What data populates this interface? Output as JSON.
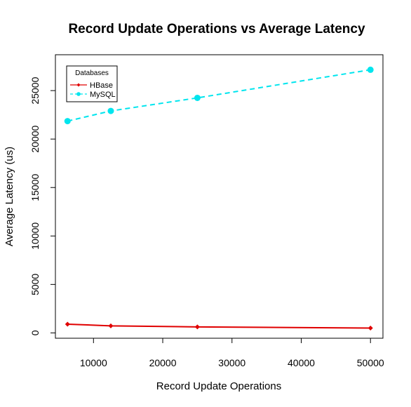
{
  "chart_data": {
    "type": "line",
    "title": "Record Update Operations vs Average Latency",
    "xlabel": "Record Update Operations",
    "ylabel": "Average Latency (us)",
    "x": [
      6250,
      12500,
      25000,
      50000
    ],
    "xlim": [
      4500,
      51800
    ],
    "ylim": [
      -550,
      28700
    ],
    "xticks": [
      10000,
      20000,
      30000,
      40000,
      50000
    ],
    "yticks": [
      0,
      5000,
      10000,
      15000,
      20000,
      25000
    ],
    "legend": {
      "title": "Databases",
      "position": "top-left"
    },
    "grid": false,
    "series": [
      {
        "name": "HBase",
        "color": "#e00000",
        "line_style": "solid",
        "marker": "diamond",
        "values": [
          900,
          730,
          620,
          500
        ]
      },
      {
        "name": "MySQL",
        "color": "#00e5ee",
        "line_style": "dashed",
        "marker": "circle",
        "values": [
          21850,
          22900,
          24250,
          27150
        ]
      }
    ]
  }
}
